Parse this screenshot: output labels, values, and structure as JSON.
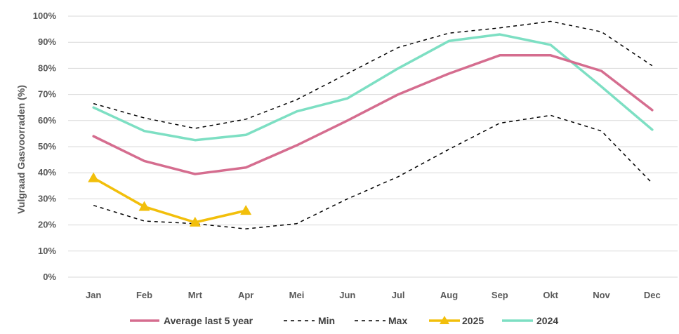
{
  "chart_data": {
    "type": "line",
    "title": "",
    "xlabel": "",
    "ylabel": "Vulgraad Gasvoorraden (%)",
    "ylim": [
      0,
      100
    ],
    "ytick_step": 10,
    "ytick_suffix": "%",
    "grid": true,
    "legend_position": "bottom",
    "categories": [
      "Jan",
      "Feb",
      "Mrt",
      "Apr",
      "Mei",
      "Jun",
      "Jul",
      "Aug",
      "Sep",
      "Okt",
      "Nov",
      "Dec"
    ],
    "series": [
      {
        "name": "Average last 5 year",
        "color": "#D56D8F",
        "style": "solid",
        "marker": "none",
        "values": [
          54,
          44.5,
          39.5,
          42,
          50.5,
          60,
          70,
          78,
          85,
          85,
          79,
          64
        ]
      },
      {
        "name": "Min",
        "color": "#000000",
        "style": "dashed",
        "marker": "none",
        "values": [
          27.5,
          21.5,
          20.5,
          18.5,
          20.5,
          30,
          38.5,
          49,
          59,
          62,
          56,
          36
        ]
      },
      {
        "name": "Max",
        "color": "#000000",
        "style": "dashed",
        "marker": "none",
        "values": [
          66.5,
          61,
          57,
          60.5,
          68,
          78,
          88,
          93.5,
          95.5,
          98,
          94,
          81
        ]
      },
      {
        "name": "2025",
        "color": "#F2BF0B",
        "style": "solid",
        "marker": "triangle",
        "values": [
          38,
          27,
          21,
          25.5,
          null,
          null,
          null,
          null,
          null,
          null,
          null,
          null
        ]
      },
      {
        "name": "2024",
        "color": "#7DDFC3",
        "style": "solid",
        "marker": "none",
        "values": [
          65,
          56,
          52.5,
          54.5,
          63.5,
          68.5,
          80,
          90.5,
          93,
          89,
          73,
          56.5
        ]
      }
    ]
  }
}
